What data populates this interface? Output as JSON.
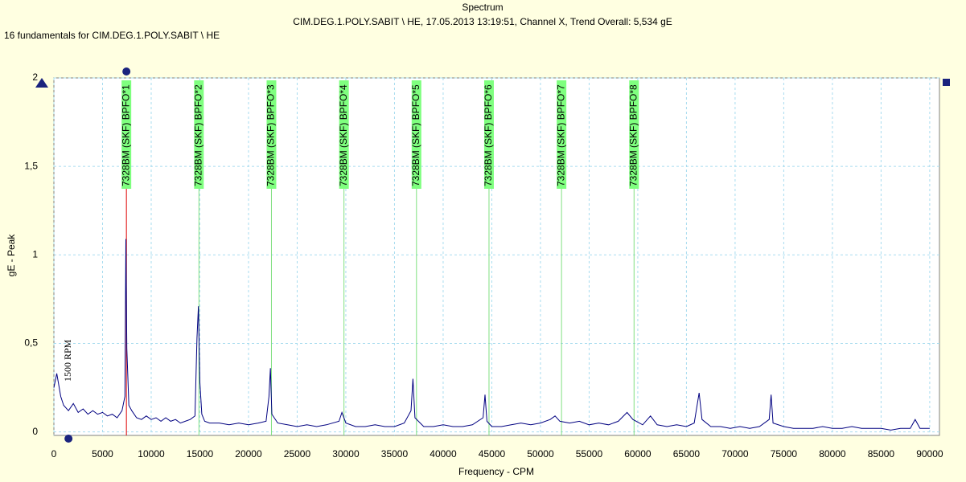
{
  "chart_data": {
    "type": "line",
    "title": "Spectrum",
    "subtitle": "CIM.DEG.1.POLY.SABIT \\ HE, 17.05.2013 13:19:51, Channel X, Trend Overall: 5,534 gE",
    "note": "16 fundamentals for CIM.DEG.1.POLY.SABIT \\ HE",
    "xlabel": "Frequency - CPM",
    "ylabel": "gE - Peak",
    "color": "#000080",
    "grid": true,
    "xlim": [
      0,
      91000
    ],
    "ylim": [
      -0.02,
      2
    ],
    "xticks": [
      0,
      5000,
      10000,
      15000,
      20000,
      25000,
      30000,
      35000,
      40000,
      45000,
      50000,
      55000,
      60000,
      65000,
      70000,
      75000,
      80000,
      85000,
      90000
    ],
    "yticks": [
      0,
      {
        "value": 0.5,
        "label": "0,5"
      },
      1,
      {
        "value": 1.5,
        "label": "1,5"
      },
      2
    ],
    "x": [
      0,
      300,
      700,
      1000,
      1500,
      2000,
      2500,
      3000,
      3500,
      4000,
      4500,
      5000,
      5500,
      6000,
      6500,
      7000,
      7300,
      7400,
      7500,
      7700,
      8000,
      8500,
      9000,
      9500,
      10000,
      10500,
      11000,
      11500,
      12000,
      12500,
      13000,
      13500,
      14000,
      14500,
      14700,
      14850,
      15000,
      15200,
      15500,
      16000,
      17000,
      18000,
      19000,
      20000,
      21000,
      21800,
      22100,
      22250,
      22400,
      23000,
      24000,
      25000,
      26000,
      27000,
      28000,
      29300,
      29600,
      30000,
      31000,
      32000,
      33000,
      34000,
      35000,
      36000,
      36700,
      36900,
      37100,
      38000,
      39000,
      40000,
      41000,
      42000,
      43000,
      44100,
      44300,
      44500,
      45000,
      46000,
      47000,
      48000,
      49000,
      50000,
      51000,
      51500,
      52000,
      53000,
      54000,
      55000,
      56000,
      57000,
      58000,
      58900,
      59500,
      60500,
      61300,
      62000,
      63000,
      64000,
      65000,
      65800,
      66300,
      66600,
      67500,
      68500,
      69500,
      70500,
      71500,
      72500,
      73500,
      73700,
      73900,
      75000,
      76000,
      77000,
      78000,
      79000,
      80000,
      81000,
      82000,
      83000,
      84000,
      85000,
      86000,
      87000,
      88000,
      88500,
      89000,
      90000
    ],
    "values": [
      0.25,
      0.33,
      0.2,
      0.15,
      0.12,
      0.16,
      0.11,
      0.13,
      0.1,
      0.12,
      0.1,
      0.11,
      0.09,
      0.1,
      0.08,
      0.12,
      0.2,
      1.09,
      0.47,
      0.15,
      0.12,
      0.08,
      0.07,
      0.09,
      0.07,
      0.08,
      0.06,
      0.08,
      0.06,
      0.07,
      0.05,
      0.06,
      0.07,
      0.09,
      0.53,
      0.71,
      0.28,
      0.1,
      0.06,
      0.05,
      0.05,
      0.04,
      0.05,
      0.04,
      0.05,
      0.06,
      0.2,
      0.36,
      0.1,
      0.05,
      0.04,
      0.03,
      0.04,
      0.03,
      0.04,
      0.06,
      0.11,
      0.05,
      0.03,
      0.03,
      0.04,
      0.03,
      0.03,
      0.05,
      0.12,
      0.3,
      0.08,
      0.03,
      0.03,
      0.04,
      0.03,
      0.03,
      0.04,
      0.08,
      0.21,
      0.06,
      0.03,
      0.03,
      0.04,
      0.05,
      0.04,
      0.05,
      0.07,
      0.09,
      0.06,
      0.05,
      0.06,
      0.04,
      0.05,
      0.04,
      0.06,
      0.11,
      0.07,
      0.04,
      0.09,
      0.04,
      0.03,
      0.04,
      0.03,
      0.05,
      0.22,
      0.07,
      0.03,
      0.03,
      0.02,
      0.03,
      0.02,
      0.03,
      0.07,
      0.21,
      0.05,
      0.03,
      0.02,
      0.02,
      0.02,
      0.03,
      0.02,
      0.02,
      0.03,
      0.02,
      0.02,
      0.02,
      0.01,
      0.02,
      0.02,
      0.07,
      0.02,
      0.02
    ],
    "markers": [
      {
        "x": 7452,
        "label": "7328BM (SKF) BPFO*1",
        "color": "#e00000"
      },
      {
        "x": 14904,
        "label": "7328BM (SKF) BPFO*2",
        "color": "#80e080"
      },
      {
        "x": 22356,
        "label": "7328BM (SKF) BPFO*3",
        "color": "#80e080"
      },
      {
        "x": 29808,
        "label": "7328BM (SKF) BPFO*4",
        "color": "#80e080"
      },
      {
        "x": 37260,
        "label": "7328BM (SKF) BPFO*5",
        "color": "#80e080"
      },
      {
        "x": 44712,
        "label": "7328BM (SKF) BPFO*6",
        "color": "#80e080"
      },
      {
        "x": 52164,
        "label": "7328BM (SKF) BPFO*7",
        "color": "#80e080"
      },
      {
        "x": 59616,
        "label": "7328BM (SKF) BPFO*8",
        "color": "#80e080"
      }
    ],
    "annotations": [
      {
        "text": "1500 RPM",
        "x": 1500
      }
    ]
  }
}
